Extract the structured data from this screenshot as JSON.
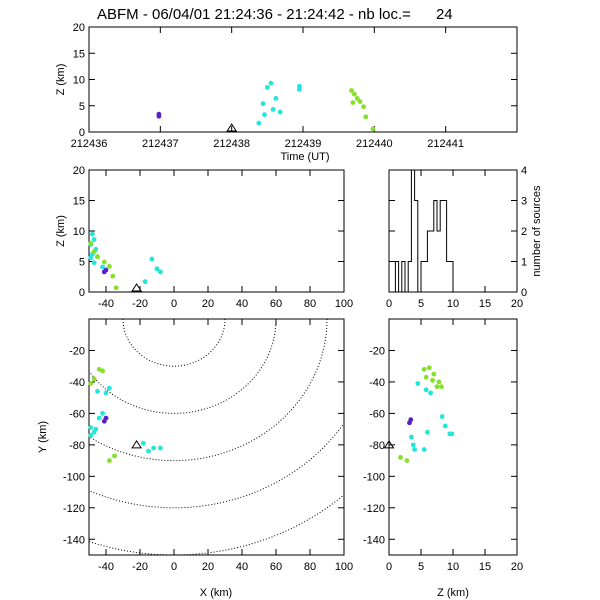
{
  "title": "ABFM - 06/04/01 21:24:36 - 21:24:42 - nb loc.=      24",
  "colors": {
    "purple": "#5a1fc8",
    "cyan": "#22e6d8",
    "green": "#86e02a"
  },
  "chart_data": [
    {
      "panel": "time-height",
      "type": "scatter",
      "xlabel": "Time (UT)",
      "ylabel": "Z (km)",
      "xlim": [
        212436,
        212442
      ],
      "ylim": [
        0,
        20
      ],
      "xticks": [
        "212436",
        "212437",
        "212438",
        "212439",
        "212440",
        "212441"
      ],
      "yticks": [
        "0",
        "5",
        "10",
        "15",
        "20"
      ],
      "station_marker_x": 212438,
      "points": [
        {
          "x": 212436.98,
          "y": 3.4,
          "c": "purple"
        },
        {
          "x": 212436.98,
          "y": 3.0,
          "c": "purple"
        },
        {
          "x": 212438.38,
          "y": 1.7,
          "c": "cyan"
        },
        {
          "x": 212438.44,
          "y": 5.4,
          "c": "cyan"
        },
        {
          "x": 212438.46,
          "y": 3.3,
          "c": "cyan"
        },
        {
          "x": 212438.5,
          "y": 8.5,
          "c": "cyan"
        },
        {
          "x": 212438.55,
          "y": 9.3,
          "c": "cyan"
        },
        {
          "x": 212438.58,
          "y": 4.3,
          "c": "cyan"
        },
        {
          "x": 212438.62,
          "y": 6.4,
          "c": "cyan"
        },
        {
          "x": 212438.68,
          "y": 3.8,
          "c": "cyan"
        },
        {
          "x": 212438.95,
          "y": 8.1,
          "c": "cyan"
        },
        {
          "x": 212438.95,
          "y": 8.7,
          "c": "cyan"
        },
        {
          "x": 212439.68,
          "y": 7.9,
          "c": "green"
        },
        {
          "x": 212439.72,
          "y": 7.2,
          "c": "green"
        },
        {
          "x": 212439.76,
          "y": 6.4,
          "c": "green"
        },
        {
          "x": 212439.7,
          "y": 5.6,
          "c": "green"
        },
        {
          "x": 212439.8,
          "y": 5.8,
          "c": "green"
        },
        {
          "x": 212439.85,
          "y": 4.8,
          "c": "green"
        },
        {
          "x": 212439.88,
          "y": 2.9,
          "c": "green"
        },
        {
          "x": 212439.98,
          "y": 0.6,
          "c": "green"
        }
      ]
    },
    {
      "panel": "x-z",
      "type": "scatter",
      "ylabel": "Z (km)",
      "xlim": [
        -50,
        100
      ],
      "ylim": [
        0,
        20
      ],
      "xticks": [
        "-40",
        "-20",
        "0",
        "20",
        "40",
        "60",
        "80",
        "100"
      ],
      "yticks": [
        "0",
        "5",
        "10",
        "15",
        "20"
      ],
      "station_marker_x": -22,
      "points": [
        {
          "x": -48,
          "y": 9.5,
          "c": "cyan"
        },
        {
          "x": -47,
          "y": 8.6,
          "c": "cyan"
        },
        {
          "x": -49,
          "y": 7.8,
          "c": "cyan"
        },
        {
          "x": -46,
          "y": 7.0,
          "c": "cyan"
        },
        {
          "x": -48,
          "y": 6.2,
          "c": "cyan"
        },
        {
          "x": -49,
          "y": 5.6,
          "c": "cyan"
        },
        {
          "x": -47,
          "y": 4.8,
          "c": "cyan"
        },
        {
          "x": -42,
          "y": 4.1,
          "c": "cyan"
        },
        {
          "x": -13,
          "y": 5.4,
          "c": "cyan"
        },
        {
          "x": -10,
          "y": 3.8,
          "c": "cyan"
        },
        {
          "x": -8,
          "y": 3.3,
          "c": "cyan"
        },
        {
          "x": -17,
          "y": 1.7,
          "c": "cyan"
        },
        {
          "x": -49,
          "y": 8.0,
          "c": "green"
        },
        {
          "x": -47,
          "y": 6.6,
          "c": "green"
        },
        {
          "x": -45,
          "y": 5.8,
          "c": "green"
        },
        {
          "x": -41,
          "y": 4.9,
          "c": "green"
        },
        {
          "x": -38,
          "y": 4.2,
          "c": "green"
        },
        {
          "x": -36,
          "y": 2.6,
          "c": "green"
        },
        {
          "x": -34,
          "y": 0.7,
          "c": "green"
        },
        {
          "x": -41,
          "y": 3.3,
          "c": "purple"
        },
        {
          "x": -40,
          "y": 3.6,
          "c": "purple"
        }
      ]
    },
    {
      "panel": "z-histogram",
      "type": "bar",
      "ylabel": "number of sources",
      "xlim": [
        0,
        20
      ],
      "ylim": [
        0,
        4
      ],
      "xticks": [
        "0",
        "5",
        "10",
        "15",
        "20"
      ],
      "yticks": [
        "0",
        "1",
        "2",
        "3",
        "4"
      ],
      "bin_width": 0.5,
      "counts": [
        0,
        0,
        1,
        0,
        1,
        0,
        1,
        4,
        3,
        0,
        1,
        1,
        2,
        2,
        3,
        2,
        3,
        3,
        1,
        1,
        0,
        0,
        0,
        0,
        0,
        0,
        0,
        0,
        0,
        0,
        0,
        0,
        0,
        0,
        0,
        0,
        0,
        0,
        0,
        0
      ]
    },
    {
      "panel": "x-y",
      "type": "scatter",
      "xlabel": "X (km)",
      "ylabel": "Y (km)",
      "xlim": [
        -50,
        100
      ],
      "ylim": [
        -150,
        0
      ],
      "xticks": [
        "-40",
        "-20",
        "0",
        "20",
        "40",
        "60",
        "80",
        "100"
      ],
      "yticks": [
        "-140",
        "-120",
        "-100",
        "-80",
        "-60",
        "-40",
        "-20"
      ],
      "station_marker": [
        -22,
        -80
      ],
      "range_rings_center": [
        0,
        0
      ],
      "range_rings_radius_km": [
        30,
        60,
        90,
        120,
        150
      ],
      "points": [
        {
          "x": -44,
          "y": -32,
          "c": "green"
        },
        {
          "x": -42,
          "y": -33,
          "c": "green"
        },
        {
          "x": -47,
          "y": -38,
          "c": "green"
        },
        {
          "x": -49,
          "y": -41,
          "c": "green"
        },
        {
          "x": -45,
          "y": -46,
          "c": "cyan"
        },
        {
          "x": -38,
          "y": -44,
          "c": "cyan"
        },
        {
          "x": -40,
          "y": -47,
          "c": "cyan"
        },
        {
          "x": -42,
          "y": -60,
          "c": "cyan"
        },
        {
          "x": -44,
          "y": -63,
          "c": "cyan"
        },
        {
          "x": -49,
          "y": -69,
          "c": "cyan"
        },
        {
          "x": -47,
          "y": -72,
          "c": "cyan"
        },
        {
          "x": -49,
          "y": -74,
          "c": "cyan"
        },
        {
          "x": -46,
          "y": -70,
          "c": "cyan"
        },
        {
          "x": -40,
          "y": -63,
          "c": "purple"
        },
        {
          "x": -41,
          "y": -65,
          "c": "purple"
        },
        {
          "x": -18,
          "y": -79,
          "c": "cyan"
        },
        {
          "x": -12,
          "y": -82,
          "c": "cyan"
        },
        {
          "x": -8,
          "y": -82,
          "c": "cyan"
        },
        {
          "x": -15,
          "y": -84,
          "c": "cyan"
        },
        {
          "x": -35,
          "y": -87,
          "c": "green"
        },
        {
          "x": -38,
          "y": -90,
          "c": "green"
        }
      ]
    },
    {
      "panel": "z-y",
      "type": "scatter",
      "xlabel": "Z (km)",
      "xlim": [
        0,
        20
      ],
      "ylim": [
        -150,
        0
      ],
      "xticks": [
        "0",
        "5",
        "10",
        "15",
        "20"
      ],
      "yticks": [
        "-140",
        "-120",
        "-100",
        "-80",
        "-60",
        "-40",
        "-20"
      ],
      "station_marker": [
        0,
        -80
      ],
      "points": [
        {
          "x": 5.5,
          "y": -32,
          "c": "green"
        },
        {
          "x": 6.3,
          "y": -31,
          "c": "green"
        },
        {
          "x": 7.0,
          "y": -35,
          "c": "green"
        },
        {
          "x": 5.8,
          "y": -37,
          "c": "green"
        },
        {
          "x": 6.8,
          "y": -39,
          "c": "green"
        },
        {
          "x": 7.8,
          "y": -40,
          "c": "green"
        },
        {
          "x": 8.2,
          "y": -43,
          "c": "green"
        },
        {
          "x": 7.5,
          "y": -43,
          "c": "green"
        },
        {
          "x": 4.5,
          "y": -41,
          "c": "cyan"
        },
        {
          "x": 5.8,
          "y": -45,
          "c": "cyan"
        },
        {
          "x": 6.5,
          "y": -47,
          "c": "cyan"
        },
        {
          "x": 8.3,
          "y": -62,
          "c": "cyan"
        },
        {
          "x": 8.8,
          "y": -68,
          "c": "cyan"
        },
        {
          "x": 9.5,
          "y": -73,
          "c": "cyan"
        },
        {
          "x": 9.8,
          "y": -73,
          "c": "cyan"
        },
        {
          "x": 6.0,
          "y": -72,
          "c": "cyan"
        },
        {
          "x": 3.5,
          "y": -75,
          "c": "cyan"
        },
        {
          "x": 3.8,
          "y": -80,
          "c": "cyan"
        },
        {
          "x": 5.5,
          "y": -83,
          "c": "cyan"
        },
        {
          "x": 4.0,
          "y": -83,
          "c": "cyan"
        },
        {
          "x": 3.4,
          "y": -64,
          "c": "purple"
        },
        {
          "x": 3.2,
          "y": -66,
          "c": "purple"
        },
        {
          "x": 1.8,
          "y": -88,
          "c": "green"
        },
        {
          "x": 2.8,
          "y": -90,
          "c": "green"
        }
      ]
    }
  ]
}
